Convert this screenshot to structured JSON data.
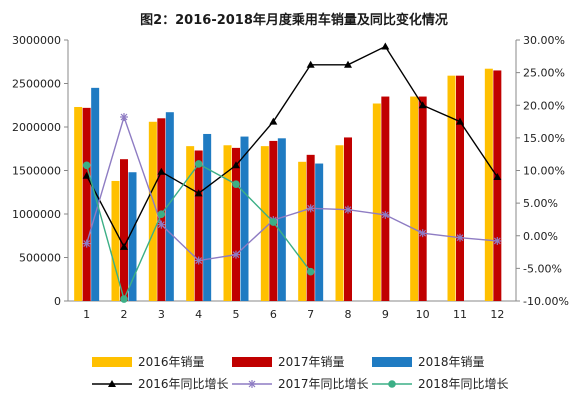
{
  "chart_data": {
    "type": "bar",
    "title": "图2：2016-2018年月度乘用车销量及同比变化情况",
    "categories": [
      "1",
      "2",
      "3",
      "4",
      "5",
      "6",
      "7",
      "8",
      "9",
      "10",
      "11",
      "12"
    ],
    "left_axis": {
      "ylim": [
        0,
        3000000
      ],
      "ticks": [
        "0",
        "500000",
        "1000000",
        "1500000",
        "2000000",
        "2500000",
        "3000000"
      ]
    },
    "right_axis": {
      "ylim": [
        -0.1,
        0.3
      ],
      "ticks": [
        "-10.00%",
        "-5.00%",
        "0.00%",
        "5.00%",
        "10.00%",
        "15.00%",
        "20.00%",
        "25.00%",
        "30.00%"
      ]
    },
    "bar_series": [
      {
        "name": "2016年销量",
        "color": "#FFC000",
        "values": [
          2230000,
          1380000,
          2060000,
          1780000,
          1790000,
          1780000,
          1600000,
          1790000,
          2270000,
          2350000,
          2590000,
          2670000
        ]
      },
      {
        "name": "2017年销量",
        "color": "#C00000",
        "values": [
          2220000,
          1630000,
          2100000,
          1730000,
          1760000,
          1840000,
          1680000,
          1880000,
          2350000,
          2350000,
          2590000,
          2650000
        ]
      },
      {
        "name": "2018年销量",
        "color": "#1F7BC2",
        "values": [
          2450000,
          1480000,
          2170000,
          1920000,
          1890000,
          1870000,
          1580000,
          null,
          null,
          null,
          null,
          null
        ]
      }
    ],
    "line_series": [
      {
        "name": "2016年同比增长",
        "color": "#000000",
        "marker": "triangle",
        "values": [
          0.092,
          -0.017,
          0.098,
          0.065,
          0.108,
          0.175,
          0.262,
          0.262,
          0.29,
          0.2,
          0.175,
          0.09
        ]
      },
      {
        "name": "2017年同比增长",
        "color": "#8E7CC3",
        "marker": "star",
        "values": [
          -0.012,
          0.182,
          0.017,
          -0.038,
          -0.029,
          0.024,
          0.042,
          0.04,
          0.032,
          0.004,
          -0.003,
          -0.008
        ]
      },
      {
        "name": "2018年同比增长",
        "color": "#3CAF86",
        "marker": "circle",
        "values": [
          0.108,
          -0.097,
          0.033,
          0.11,
          0.079,
          0.021,
          -0.055,
          null,
          null,
          null,
          null,
          null
        ]
      }
    ],
    "grid": false,
    "legend_position": "bottom"
  }
}
